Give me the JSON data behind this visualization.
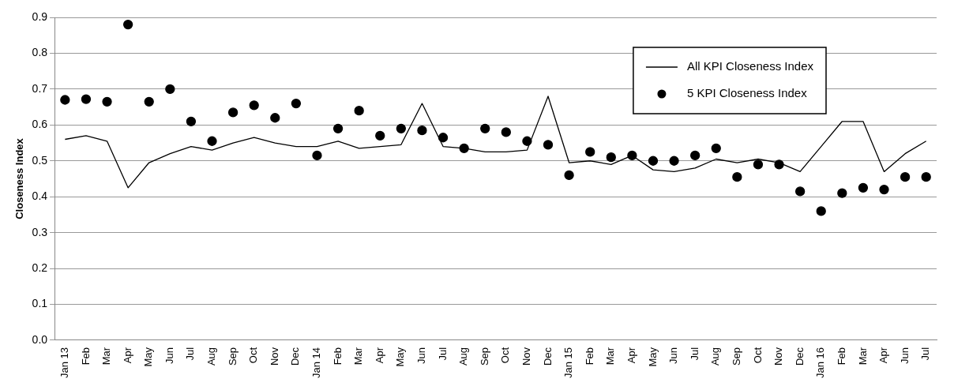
{
  "chart_data": {
    "type": "line",
    "ylabel": "Closeness Index",
    "categories": [
      "Jan 13",
      "Feb",
      "Mar",
      "Apr",
      "May",
      "Jun",
      "Jul",
      "Aug",
      "Sep",
      "Oct",
      "Nov",
      "Dec",
      "Jan 14",
      "Feb",
      "Mar",
      "Apr",
      "May",
      "Jun",
      "Jul",
      "Aug",
      "Sep",
      "Oct",
      "Nov",
      "Dec",
      "Jan 15",
      "Feb",
      "Mar",
      "Apr",
      "May",
      "Jun",
      "Jul",
      "Aug",
      "Sep",
      "Oct",
      "Nov",
      "Dec",
      "Jan 16",
      "Feb",
      "Mar",
      "Apr",
      "Jun",
      "Jul"
    ],
    "series": [
      {
        "name": "All KPI Closeness Index",
        "color": "#000000",
        "marker": "none",
        "values": [
          0.56,
          0.57,
          0.555,
          0.425,
          0.495,
          0.52,
          0.54,
          0.53,
          0.55,
          0.565,
          0.55,
          0.54,
          0.54,
          0.555,
          0.535,
          0.54,
          0.545,
          0.66,
          0.54,
          0.535,
          0.525,
          0.525,
          0.53,
          0.68,
          0.495,
          0.5,
          0.49,
          0.515,
          0.475,
          0.47,
          0.48,
          0.505,
          0.495,
          0.505,
          0.495,
          0.47,
          0.54,
          0.61,
          0.61,
          0.47,
          0.52,
          0.555
        ]
      },
      {
        "name": "5 KPI Closeness Index",
        "type": "scatter",
        "color": "#000000",
        "marker": "circle",
        "values": [
          0.67,
          0.672,
          0.665,
          0.88,
          0.665,
          0.7,
          0.61,
          0.555,
          0.635,
          0.655,
          0.62,
          0.66,
          0.515,
          0.59,
          0.64,
          0.57,
          0.59,
          0.585,
          0.565,
          0.535,
          0.59,
          0.58,
          0.555,
          0.545,
          0.46,
          0.525,
          0.51,
          0.515,
          0.5,
          0.5,
          0.515,
          0.535,
          0.455,
          0.49,
          0.49,
          0.415,
          0.36,
          0.41,
          0.425,
          0.42,
          0.455,
          0.455
        ]
      }
    ],
    "ylim": [
      0,
      0.9
    ],
    "yticks": [
      {
        "value": 0,
        "label": "0.0"
      },
      {
        "value": 0.1,
        "label": "0.1"
      },
      {
        "value": 0.2,
        "label": "0.2"
      },
      {
        "value": 0.3,
        "label": "0.3"
      },
      {
        "value": 0.4,
        "label": "0.4"
      },
      {
        "value": 0.5,
        "label": "0.5"
      },
      {
        "value": 0.6,
        "label": "0.6"
      },
      {
        "value": 0.7,
        "label": "0.7"
      },
      {
        "value": 0.8,
        "label": "0.8"
      },
      {
        "value": 0.9,
        "label": "0.9"
      }
    ],
    "grid": "y",
    "legend": "top right"
  }
}
